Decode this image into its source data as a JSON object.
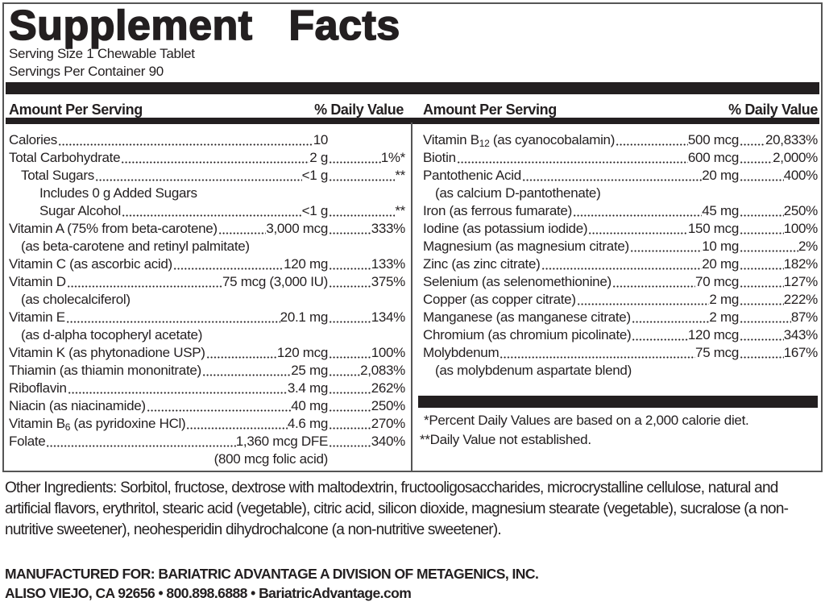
{
  "title": "Supplement   Facts",
  "serving_size": "Serving Size 1 Chewable Tablet",
  "servings_per_container": "Servings Per Container 90",
  "header": {
    "amount": "Amount Per Serving",
    "daily_value": "% Daily Value"
  },
  "left_rows": [
    {
      "name": "Calories",
      "amount": "10",
      "dv": "",
      "indent": 0,
      "kind": "row"
    },
    {
      "name": "Total Carbohydrate",
      "amount": "2 g",
      "dv": "1%*",
      "indent": 0,
      "kind": "row"
    },
    {
      "name": "Total Sugars ",
      "amount": "<1 g",
      "dv": "**",
      "indent": 1,
      "kind": "row"
    },
    {
      "name": "Includes 0 g Added Sugars",
      "indent": 2,
      "kind": "note"
    },
    {
      "name": "Sugar Alcohol ",
      "amount": "<1 g",
      "dv": "**",
      "indent": 2,
      "kind": "row"
    },
    {
      "name": "Vitamin A (75% from beta-carotene)",
      "amount": "3,000 mcg",
      "dv": "333%",
      "indent": 0,
      "kind": "row"
    },
    {
      "name": "(as beta-carotene and retinyl palmitate)",
      "indent": 1,
      "kind": "note"
    },
    {
      "name": "Vitamin C (as ascorbic acid)",
      "amount": "120 mg",
      "dv": "133%",
      "indent": 0,
      "kind": "row"
    },
    {
      "name": "Vitamin D ",
      "amount": "75 mcg (3,000 IU)",
      "dv": "375%",
      "indent": 0,
      "kind": "row"
    },
    {
      "name": "(as cholecalciferol)",
      "indent": 1,
      "kind": "note"
    },
    {
      "name": "Vitamin E",
      "amount": "20.1 mg",
      "dv": "134%",
      "indent": 0,
      "kind": "row"
    },
    {
      "name": "(as d-alpha tocopheryl acetate)",
      "indent": 1,
      "kind": "note"
    },
    {
      "name": "Vitamin K (as phytonadione USP) ",
      "amount": "120 mcg",
      "dv": "100%",
      "indent": 0,
      "kind": "row"
    },
    {
      "name": "Thiamin (as thiamin mononitrate)",
      "amount": "25 mg",
      "dv": "2,083%",
      "indent": 0,
      "kind": "row"
    },
    {
      "name": "Riboflavin ",
      "amount": "3.4 mg",
      "dv": "262%",
      "indent": 0,
      "kind": "row"
    },
    {
      "name": "Niacin (as niacinamide) ",
      "amount": "40 mg",
      "dv": "250%",
      "indent": 0,
      "kind": "row"
    },
    {
      "name": "Vitamin B",
      "sub": "6",
      "rest": " (as pyridoxine HCl)",
      "amount": "4.6 mg",
      "dv": "270%",
      "indent": 0,
      "kind": "row"
    },
    {
      "name": "Folate",
      "amount": "1,360 mcg DFE",
      "dv": "340%",
      "indent": 0,
      "kind": "row"
    },
    {
      "name": "(800 mcg folic acid)",
      "indent": 0,
      "kind": "amount-note"
    }
  ],
  "right_rows": [
    {
      "name": "Vitamin B",
      "sub": "12",
      "rest": " (as cyanocobalamin) ",
      "amount": "500 mcg",
      "dv": "20,833%",
      "indent": 0,
      "kind": "row"
    },
    {
      "name": "Biotin ",
      "amount": "600 mcg",
      "dv": "2,000%",
      "indent": 0,
      "kind": "row"
    },
    {
      "name": "Pantothenic Acid",
      "amount": "20 mg",
      "dv": "400%",
      "indent": 0,
      "kind": "row"
    },
    {
      "name": "(as calcium D-pantothenate)",
      "indent": 1,
      "kind": "note"
    },
    {
      "name": "Iron (as ferrous fumarate)",
      "amount": "45 mg",
      "dv": "250%",
      "indent": 0,
      "kind": "row"
    },
    {
      "name": "Iodine (as potassium iodide) ",
      "amount": "150 mcg",
      "dv": "100%",
      "indent": 0,
      "kind": "row"
    },
    {
      "name": "Magnesium (as magnesium citrate) ",
      "amount": "10 mg",
      "dv": "2%",
      "indent": 0,
      "kind": "row"
    },
    {
      "name": "Zinc (as zinc citrate)",
      "amount": "20 mg",
      "dv": "182%",
      "indent": 0,
      "kind": "row"
    },
    {
      "name": "Selenium (as selenomethionine)",
      "amount": "70 mcg",
      "dv": "127%",
      "indent": 0,
      "kind": "row"
    },
    {
      "name": "Copper (as copper citrate) ",
      "amount": "2 mg",
      "dv": "222%",
      "indent": 0,
      "kind": "row"
    },
    {
      "name": "Manganese (as manganese citrate) ",
      "amount": "2 mg",
      "dv": "87%",
      "indent": 0,
      "kind": "row"
    },
    {
      "name": "Chromium (as chromium picolinate)",
      "amount": "120 mcg",
      "dv": "343%",
      "indent": 0,
      "kind": "row"
    },
    {
      "name": "Molybdenum ",
      "amount": "75 mcg",
      "dv": "167%",
      "indent": 0,
      "kind": "row"
    },
    {
      "name": "(as molybdenum aspartate blend)",
      "indent": 1,
      "kind": "note"
    }
  ],
  "footnotes": [
    "*Percent Daily Values are based on a 2,000 calorie diet.",
    "**Daily Value not established."
  ],
  "other_ingredients": "Other Ingredients: Sorbitol, fructose, dextrose with maltodextrin, fructooligosaccharides, microcrystalline cellulose, natural and artificial flavors, erythritol, stearic acid (vegetable), citric acid, silicon dioxide, magnesium stearate (vegetable), sucralose (a non-nutritive sweetener), neohesperidin dihydrochalcone (a non-nutritive sweetener).",
  "manufacturer": {
    "line1": "MANUFACTURED FOR: BARIATRIC ADVANTAGE A DIVISION OF METAGENICS, INC.",
    "line2": "ALISO VIEJO, CA 92656 • 800.898.6888 • BariatricAdvantage.com"
  },
  "colors": {
    "ink": "#231f20",
    "border": "#555555"
  }
}
